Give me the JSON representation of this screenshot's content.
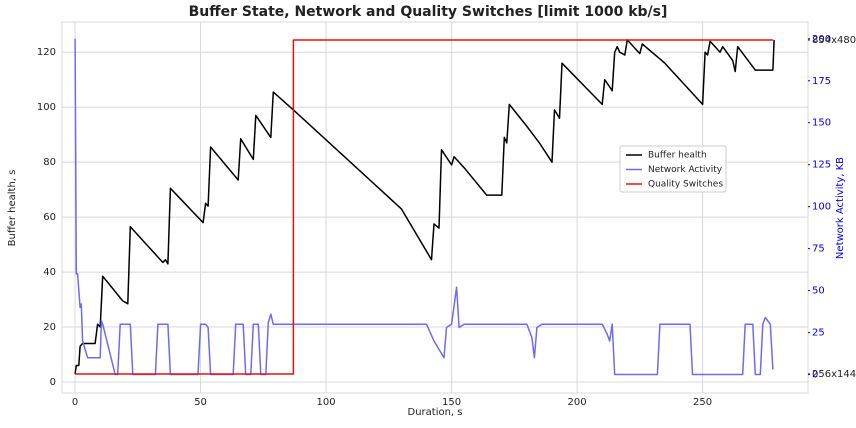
{
  "chart_data": {
    "type": "line",
    "title": "Buffer State, Network and Quality Switches [limit 1000 kb/s]",
    "xlabel": "Duration, s",
    "ylabel": "Buffer health, s",
    "y2label": "Network Activity, KB",
    "xlim": [
      -5.2,
      292
    ],
    "xticks": [
      0,
      50,
      100,
      150,
      200,
      250
    ],
    "ylim": [
      -4,
      131
    ],
    "yticks": [
      0,
      20,
      40,
      60,
      80,
      100,
      120
    ],
    "y2lim": [
      -11,
      210
    ],
    "y2ticks": [
      0,
      25,
      50,
      75,
      100,
      125,
      150,
      175,
      200
    ],
    "y3lim": [
      -0.057,
      1.054
    ],
    "y3ticks": [
      {
        "value": 0,
        "label": "256x144"
      },
      {
        "value": 1,
        "label": "854x480"
      }
    ],
    "grid": true,
    "legend": "center right",
    "series": [
      {
        "name": "Buffer health",
        "color": "#000000",
        "axis": "y",
        "x": [
          0,
          0.5,
          1.5,
          2,
          3,
          8,
          9,
          10,
          11,
          19,
          20,
          21,
          22,
          35,
          36,
          37,
          38,
          51,
          52,
          53,
          54,
          65,
          66,
          71,
          72,
          78,
          79,
          87,
          130,
          142,
          143,
          145,
          146,
          150,
          151,
          155,
          164,
          170,
          171,
          172,
          173,
          180,
          185,
          190,
          191,
          193,
          194,
          210,
          211,
          214,
          215,
          216,
          217,
          219,
          220,
          225,
          226,
          235,
          250,
          251,
          252,
          253,
          257,
          258,
          262,
          263,
          264,
          271,
          278,
          278.5
        ],
        "values": [
          3,
          6,
          6,
          13,
          14,
          14,
          21,
          20,
          38.5,
          29.5,
          29,
          28.5,
          56.5,
          43.5,
          44.5,
          43,
          70.5,
          58,
          65,
          64,
          85.5,
          73.5,
          88.5,
          81,
          97,
          89,
          105.5,
          99,
          63,
          44.5,
          57.5,
          56,
          84.5,
          79,
          82,
          78,
          68,
          68,
          89,
          87,
          101,
          93,
          87,
          80,
          99,
          96,
          116,
          101,
          110,
          106,
          120,
          122,
          120,
          119,
          124.5,
          119.5,
          123,
          116,
          101,
          120,
          119,
          124,
          120,
          122,
          117,
          113,
          122,
          113.5,
          113.5,
          124.5
        ]
      },
      {
        "name": "Network Activity",
        "color": "#6b6bf5",
        "axis": "y2",
        "x": [
          0,
          0.5,
          1,
          2,
          2.5,
          3,
          4,
          5,
          6,
          10,
          10.5,
          11,
          16,
          17,
          18,
          22,
          23,
          32,
          33,
          37,
          38,
          49,
          50,
          52,
          53,
          54,
          63,
          64,
          67,
          68,
          70,
          71,
          73,
          74,
          76,
          77,
          78,
          79,
          86,
          100,
          120,
          140,
          143,
          145,
          147,
          148,
          150,
          152,
          153,
          155,
          160,
          170,
          180,
          182,
          183,
          184,
          186,
          200,
          210,
          212,
          213,
          214,
          215,
          232,
          233,
          245,
          246,
          266,
          267,
          270,
          271,
          273,
          274,
          275,
          277,
          278
        ],
        "values": [
          200,
          60,
          60,
          40,
          42,
          20,
          15,
          10,
          10,
          10,
          32,
          30,
          0,
          0,
          30,
          30,
          0,
          0,
          30,
          30,
          0,
          0,
          30,
          30,
          28,
          0,
          0,
          30,
          30,
          0,
          0,
          30,
          30,
          0,
          0,
          31,
          36,
          30,
          30,
          30,
          30,
          30,
          20,
          15,
          10,
          28,
          30,
          52,
          28,
          30,
          30,
          30,
          30,
          22,
          10,
          28,
          30,
          30,
          30,
          24,
          20,
          30,
          0,
          0,
          30,
          30,
          0,
          0,
          30,
          30,
          0,
          0,
          30,
          34,
          30,
          3
        ]
      },
      {
        "name": "Quality Switches",
        "color": "#e8100c",
        "axis": "y3",
        "x": [
          0,
          87,
          87,
          278
        ],
        "values": [
          0,
          0,
          1,
          1
        ]
      }
    ]
  }
}
